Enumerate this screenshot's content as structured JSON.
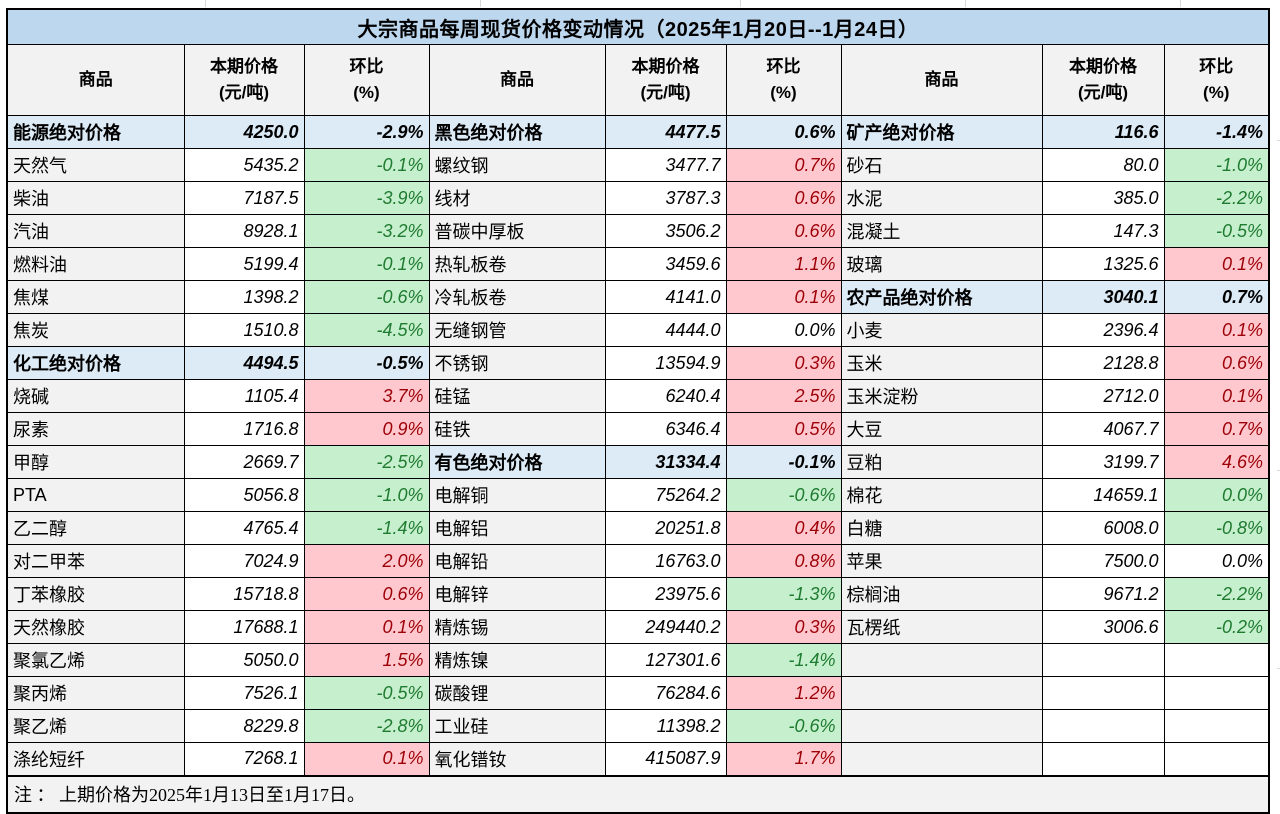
{
  "title": "大宗商品每周现货价格变动情况（2025年1月20日--1月24日）",
  "note": "注 ： 上期价格为2025年1月13日至1月17日。",
  "header": {
    "commodity": "商品",
    "price1": "本期价格",
    "price2": "(元/吨)",
    "chg1": "环比",
    "chg2": "(%)"
  },
  "colors": {
    "title_bg": "#BDD7EE",
    "header_bg": "#F2F2F2",
    "section_bg": "#DDEBF7",
    "name_bg": "#F2F2F2",
    "rise_bg": "#FFC7CE",
    "rise_text": "#9C0006",
    "fall_bg": "#C6EFCE",
    "fall_text": "#1E7B2F"
  },
  "chart_data": {
    "type": "table",
    "title": "大宗商品每周现货价格变动情况（2025年1月20日--1月24日）",
    "column_headers": [
      "商品",
      "本期价格(元/吨)",
      "环比(%)"
    ],
    "note": "注 ： 上期价格为2025年1月13日至1月17日。",
    "groups": [
      {
        "rows": [
          {
            "kind": "section",
            "name": "能源绝对价格",
            "price": "4250.0",
            "chg": "-2.9%",
            "trend": "none"
          },
          {
            "kind": "item",
            "name": "天然气",
            "price": "5435.2",
            "chg": "-0.1%",
            "trend": "down"
          },
          {
            "kind": "item",
            "name": "柴油",
            "price": "7187.5",
            "chg": "-3.9%",
            "trend": "down"
          },
          {
            "kind": "item",
            "name": "汽油",
            "price": "8928.1",
            "chg": "-3.2%",
            "trend": "down"
          },
          {
            "kind": "item",
            "name": "燃料油",
            "price": "5199.4",
            "chg": "-0.1%",
            "trend": "down"
          },
          {
            "kind": "item",
            "name": "焦煤",
            "price": "1398.2",
            "chg": "-0.6%",
            "trend": "down"
          },
          {
            "kind": "item",
            "name": "焦炭",
            "price": "1510.8",
            "chg": "-4.5%",
            "trend": "down"
          },
          {
            "kind": "section",
            "name": "化工绝对价格",
            "price": "4494.5",
            "chg": "-0.5%",
            "trend": "none"
          },
          {
            "kind": "item",
            "name": "烧碱",
            "price": "1105.4",
            "chg": "3.7%",
            "trend": "up"
          },
          {
            "kind": "item",
            "name": "尿素",
            "price": "1716.8",
            "chg": "0.9%",
            "trend": "up"
          },
          {
            "kind": "item",
            "name": "甲醇",
            "price": "2669.7",
            "chg": "-2.5%",
            "trend": "down"
          },
          {
            "kind": "item",
            "name": "PTA",
            "price": "5056.8",
            "chg": "-1.0%",
            "trend": "down"
          },
          {
            "kind": "item",
            "name": "乙二醇",
            "price": "4765.4",
            "chg": "-1.4%",
            "trend": "down"
          },
          {
            "kind": "item",
            "name": "对二甲苯",
            "price": "7024.9",
            "chg": "2.0%",
            "trend": "up"
          },
          {
            "kind": "item",
            "name": "丁苯橡胶",
            "price": "15718.8",
            "chg": "0.6%",
            "trend": "up"
          },
          {
            "kind": "item",
            "name": "天然橡胶",
            "price": "17688.1",
            "chg": "0.1%",
            "trend": "up"
          },
          {
            "kind": "item",
            "name": "聚氯乙烯",
            "price": "5050.0",
            "chg": "1.5%",
            "trend": "up"
          },
          {
            "kind": "item",
            "name": "聚丙烯",
            "price": "7526.1",
            "chg": "-0.5%",
            "trend": "down"
          },
          {
            "kind": "item",
            "name": "聚乙烯",
            "price": "8229.8",
            "chg": "-2.8%",
            "trend": "down"
          },
          {
            "kind": "item",
            "name": "涤纶短纤",
            "price": "7268.1",
            "chg": "0.1%",
            "trend": "up"
          }
        ]
      },
      {
        "rows": [
          {
            "kind": "section",
            "name": "黑色绝对价格",
            "price": "4477.5",
            "chg": "0.6%",
            "trend": "none"
          },
          {
            "kind": "item",
            "name": "螺纹钢",
            "price": "3477.7",
            "chg": "0.7%",
            "trend": "up"
          },
          {
            "kind": "item",
            "name": "线材",
            "price": "3787.3",
            "chg": "0.6%",
            "trend": "up"
          },
          {
            "kind": "item",
            "name": "普碳中厚板",
            "price": "3506.2",
            "chg": "0.6%",
            "trend": "up"
          },
          {
            "kind": "item",
            "name": "热轧板卷",
            "price": "3459.6",
            "chg": "1.1%",
            "trend": "up"
          },
          {
            "kind": "item",
            "name": "冷轧板卷",
            "price": "4141.0",
            "chg": "0.1%",
            "trend": "up"
          },
          {
            "kind": "item",
            "name": "无缝钢管",
            "price": "4444.0",
            "chg": "0.0%",
            "trend": "flat"
          },
          {
            "kind": "item",
            "name": "不锈钢",
            "price": "13594.9",
            "chg": "0.3%",
            "trend": "up"
          },
          {
            "kind": "item",
            "name": "硅锰",
            "price": "6240.4",
            "chg": "2.5%",
            "trend": "up"
          },
          {
            "kind": "item",
            "name": "硅铁",
            "price": "6346.4",
            "chg": "0.5%",
            "trend": "up"
          },
          {
            "kind": "section",
            "name": "有色绝对价格",
            "price": "31334.4",
            "chg": "-0.1%",
            "trend": "none"
          },
          {
            "kind": "item",
            "name": "电解铜",
            "price": "75264.2",
            "chg": "-0.6%",
            "trend": "down"
          },
          {
            "kind": "item",
            "name": "电解铝",
            "price": "20251.8",
            "chg": "0.4%",
            "trend": "up"
          },
          {
            "kind": "item",
            "name": "电解铅",
            "price": "16763.0",
            "chg": "0.8%",
            "trend": "up"
          },
          {
            "kind": "item",
            "name": "电解锌",
            "price": "23975.6",
            "chg": "-1.3%",
            "trend": "down"
          },
          {
            "kind": "item",
            "name": "精炼锡",
            "price": "249440.2",
            "chg": "0.3%",
            "trend": "up"
          },
          {
            "kind": "item",
            "name": "精炼镍",
            "price": "127301.6",
            "chg": "-1.4%",
            "trend": "down"
          },
          {
            "kind": "item",
            "name": "碳酸锂",
            "price": "76284.6",
            "chg": "1.2%",
            "trend": "up"
          },
          {
            "kind": "item",
            "name": "工业硅",
            "price": "11398.2",
            "chg": "-0.6%",
            "trend": "down"
          },
          {
            "kind": "item",
            "name": "氧化镨钕",
            "price": "415087.9",
            "chg": "1.7%",
            "trend": "up"
          }
        ]
      },
      {
        "rows": [
          {
            "kind": "section",
            "name": "矿产绝对价格",
            "price": "116.6",
            "chg": "-1.4%",
            "trend": "none"
          },
          {
            "kind": "item",
            "name": "砂石",
            "price": "80.0",
            "chg": "-1.0%",
            "trend": "down"
          },
          {
            "kind": "item",
            "name": "水泥",
            "price": "385.0",
            "chg": "-2.2%",
            "trend": "down"
          },
          {
            "kind": "item",
            "name": "混凝土",
            "price": "147.3",
            "chg": "-0.5%",
            "trend": "down"
          },
          {
            "kind": "item",
            "name": "玻璃",
            "price": "1325.6",
            "chg": "0.1%",
            "trend": "up"
          },
          {
            "kind": "section",
            "name": "农产品绝对价格",
            "price": "3040.1",
            "chg": "0.7%",
            "trend": "none"
          },
          {
            "kind": "item",
            "name": "小麦",
            "price": "2396.4",
            "chg": "0.1%",
            "trend": "up"
          },
          {
            "kind": "item",
            "name": "玉米",
            "price": "2128.8",
            "chg": "0.6%",
            "trend": "up"
          },
          {
            "kind": "item",
            "name": "玉米淀粉",
            "price": "2712.0",
            "chg": "0.1%",
            "trend": "up"
          },
          {
            "kind": "item",
            "name": "大豆",
            "price": "4067.7",
            "chg": "0.7%",
            "trend": "up"
          },
          {
            "kind": "item",
            "name": "豆粕",
            "price": "3199.7",
            "chg": "4.6%",
            "trend": "up"
          },
          {
            "kind": "item",
            "name": "棉花",
            "price": "14659.1",
            "chg": "0.0%",
            "trend": "down"
          },
          {
            "kind": "item",
            "name": "白糖",
            "price": "6008.0",
            "chg": "-0.8%",
            "trend": "down"
          },
          {
            "kind": "item",
            "name": "苹果",
            "price": "7500.0",
            "chg": "0.0%",
            "trend": "flat"
          },
          {
            "kind": "item",
            "name": "棕榈油",
            "price": "9671.2",
            "chg": "-2.2%",
            "trend": "down"
          },
          {
            "kind": "item",
            "name": "瓦楞纸",
            "price": "3006.6",
            "chg": "-0.2%",
            "trend": "down"
          },
          {
            "kind": "empty",
            "name": "",
            "price": "",
            "chg": "",
            "trend": "none"
          },
          {
            "kind": "empty",
            "name": "",
            "price": "",
            "chg": "",
            "trend": "none"
          },
          {
            "kind": "empty",
            "name": "",
            "price": "",
            "chg": "",
            "trend": "none"
          },
          {
            "kind": "empty",
            "name": "",
            "price": "",
            "chg": "",
            "trend": "none"
          }
        ]
      }
    ]
  }
}
